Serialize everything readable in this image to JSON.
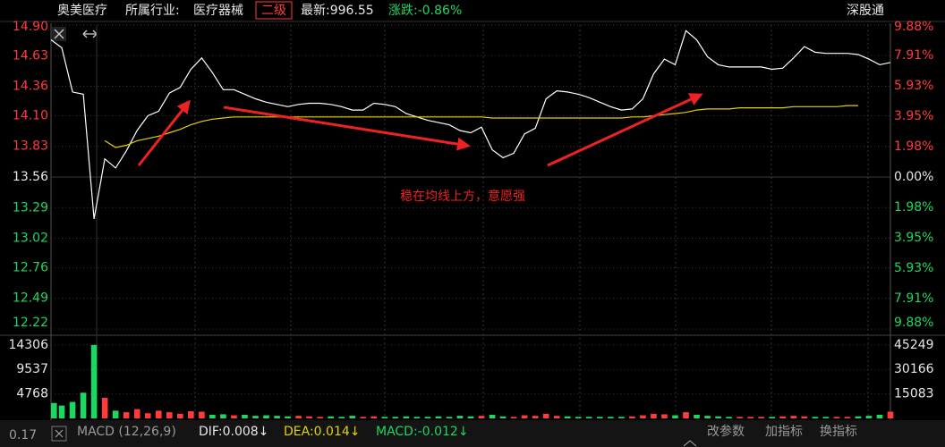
{
  "header": {
    "stock": "奥美医疗",
    "industry_label": "所属行业:",
    "industry": "医疗器械",
    "level": "二级",
    "latest": "最新:996.55",
    "change": "涨跌:-0.86%",
    "market": "深股通"
  },
  "chart_data": [
    {
      "type": "line",
      "annotation": "稳在均线上方，意愿强",
      "series": [
        {
          "color": "#ffffff",
          "values": [
            14.77,
            14.7,
            14.31,
            14.29,
            13.19,
            13.72,
            13.64,
            13.79,
            13.97,
            14.1,
            14.14,
            14.3,
            14.35,
            14.51,
            14.61,
            14.48,
            14.33,
            14.33,
            14.29,
            14.25,
            14.22,
            14.2,
            14.18,
            14.2,
            14.21,
            14.21,
            14.2,
            14.18,
            14.15,
            14.15,
            14.21,
            14.2,
            14.18,
            14.12,
            14.09,
            14.06,
            14.04,
            14.02,
            13.97,
            13.95,
            14.0,
            13.8,
            13.73,
            13.77,
            13.94,
            13.99,
            14.25,
            14.32,
            14.31,
            14.29,
            14.26,
            14.22,
            14.18,
            14.15,
            14.16,
            14.25,
            14.47,
            14.6,
            14.55,
            14.85,
            14.77,
            14.62,
            14.55,
            14.53,
            14.53,
            14.53,
            14.53,
            14.51,
            14.52,
            14.61,
            14.71,
            14.66,
            14.65,
            14.65,
            14.65,
            14.64,
            14.6,
            14.55,
            14.57
          ]
        },
        {
          "color": "#e6d200",
          "values": [
            null,
            null,
            null,
            null,
            null,
            13.88,
            13.82,
            13.84,
            13.88,
            13.9,
            13.92,
            13.95,
            13.98,
            14.02,
            14.05,
            14.07,
            14.08,
            14.09,
            14.09,
            14.09,
            14.09,
            14.09,
            14.09,
            14.09,
            14.09,
            14.09,
            14.09,
            14.09,
            14.09,
            14.09,
            14.09,
            14.09,
            14.09,
            14.09,
            14.09,
            14.09,
            14.09,
            14.09,
            14.09,
            14.09,
            14.09,
            14.08,
            14.08,
            14.08,
            14.08,
            14.08,
            14.08,
            14.08,
            14.08,
            14.08,
            14.08,
            14.08,
            14.08,
            14.08,
            14.09,
            14.09,
            14.1,
            14.11,
            14.12,
            14.13,
            14.15,
            14.16,
            14.16,
            14.16,
            14.17,
            14.17,
            14.17,
            14.17,
            14.17,
            14.18,
            14.18,
            14.18,
            14.18,
            14.18,
            14.19,
            14.19,
            null,
            null,
            null
          ]
        }
      ],
      "ylim": [
        12.22,
        14.9
      ],
      "yticks": [
        {
          "value": 14.9,
          "label": "14.90"
        },
        {
          "value": 14.63,
          "label": "14.63"
        },
        {
          "value": 14.36,
          "label": "14.36"
        },
        {
          "value": 14.1,
          "label": "14.10"
        },
        {
          "value": 13.83,
          "label": "13.83"
        },
        {
          "value": 13.56,
          "label": "13.56"
        },
        {
          "value": 13.29,
          "label": "13.29"
        },
        {
          "value": 13.02,
          "label": "13.02"
        },
        {
          "value": 12.76,
          "label": "12.76"
        },
        {
          "value": 12.49,
          "label": "12.49"
        },
        {
          "value": 12.22,
          "label": "12.22"
        }
      ],
      "y2lim": [
        -9.88,
        9.88
      ],
      "y2ticks": [
        {
          "value": 9.88,
          "label": "9.88%"
        },
        {
          "value": 7.91,
          "label": "7.91%"
        },
        {
          "value": 5.93,
          "label": "5.93%"
        },
        {
          "value": 3.95,
          "label": "3.95%"
        },
        {
          "value": 1.98,
          "label": "1.98%"
        },
        {
          "value": 0,
          "label": "0.00%"
        },
        {
          "value": -1.98,
          "label": "1.98%"
        },
        {
          "value": -3.95,
          "label": "3.95%"
        },
        {
          "value": -5.93,
          "label": "5.93%"
        },
        {
          "value": -7.91,
          "label": "7.91%"
        },
        {
          "value": -9.88,
          "label": "9.88%"
        }
      ],
      "up_color": "#ff3b3b",
      "down_color": "#1ed760",
      "flat_color": "#e8e8e8",
      "grid": true
    },
    {
      "type": "bar",
      "values": [
        3000,
        2500,
        3200,
        5000,
        14306,
        4000,
        1500,
        1200,
        1800,
        1000,
        1500,
        1200,
        900,
        1400,
        1300,
        700,
        800,
        600,
        700,
        500,
        600,
        500,
        400,
        500,
        400,
        300,
        400,
        300,
        500,
        300,
        400,
        300,
        300,
        400,
        300,
        300,
        400,
        300,
        500,
        400,
        500,
        700,
        400,
        300,
        600,
        500,
        900,
        500,
        400,
        300,
        300,
        300,
        300,
        300,
        400,
        600,
        900,
        800,
        600,
        1200,
        700,
        500,
        400,
        300,
        300,
        300,
        300,
        300,
        400,
        500,
        400,
        300,
        300,
        300,
        300,
        400,
        500,
        700,
        1300
      ],
      "ylim": [
        0,
        14800
      ],
      "yticks": [
        4768,
        9537,
        14306
      ],
      "y2lim": [
        0,
        46800
      ],
      "y2ticks": [
        15083,
        30166,
        45249
      ],
      "up_color": "#ff3b3b",
      "down_color": "#1ed760"
    }
  ],
  "footer": {
    "value": "0.17",
    "indicator": "MACD (12,26,9)",
    "dif": "DIF:0.008↓",
    "dea": "DEA:0.014↓",
    "macd": "MACD:-0.012↓",
    "btn1": "改参数",
    "btn2": "加指标",
    "btn3": "换指标"
  }
}
